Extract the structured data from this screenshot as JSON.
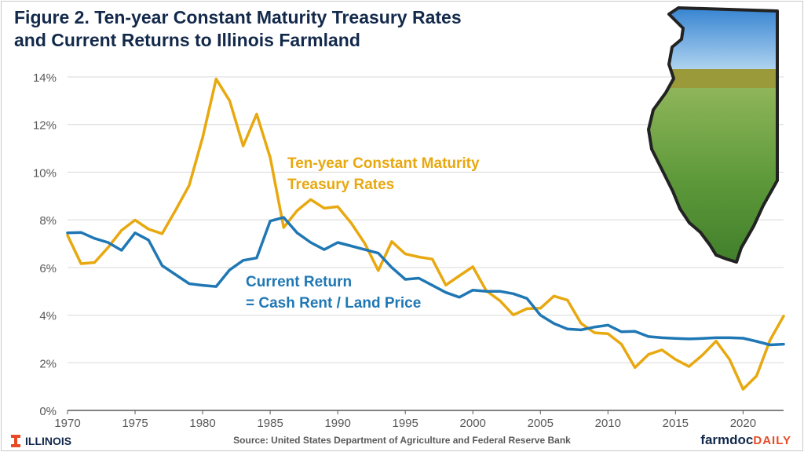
{
  "title_lines": [
    "Figure 2. Ten-year Constant Maturity Treasury Rates",
    "and Current Returns to Illinois Farmland"
  ],
  "footer": {
    "logo_text": "ILLINOIS",
    "source": "Source: United States Department of Agriculture and Federal Reserve Bank",
    "brand_main": "farmdoc",
    "brand_accent": "DAILY"
  },
  "colors": {
    "treasury": "#e8a80f",
    "current_return": "#1f77b4",
    "title": "#13294b",
    "brand_accent": "#e84a27"
  },
  "image": {
    "icon": "illinois-farmland-map-icon"
  },
  "chart_data": {
    "type": "line",
    "title": "Figure 2. Ten-year Constant Maturity Treasury Rates and Current Returns to Illinois Farmland",
    "xlabel": "",
    "ylabel": "",
    "xlim": [
      1970,
      2023
    ],
    "ylim": [
      0,
      14
    ],
    "x_ticks": [
      1970,
      1975,
      1980,
      1985,
      1990,
      1995,
      2000,
      2005,
      2010,
      2015,
      2020
    ],
    "y_ticks": [
      0,
      2,
      4,
      6,
      8,
      10,
      12,
      14
    ],
    "y_tick_suffix": "%",
    "grid": "horizontal",
    "x": [
      1970,
      1971,
      1972,
      1973,
      1974,
      1975,
      1976,
      1977,
      1978,
      1979,
      1980,
      1981,
      1982,
      1983,
      1984,
      1985,
      1986,
      1987,
      1988,
      1989,
      1990,
      1991,
      1992,
      1993,
      1994,
      1995,
      1996,
      1997,
      1998,
      1999,
      2000,
      2001,
      2002,
      2003,
      2004,
      2005,
      2006,
      2007,
      2008,
      2009,
      2010,
      2011,
      2012,
      2013,
      2014,
      2015,
      2016,
      2017,
      2018,
      2019,
      2020,
      2021,
      2022,
      2023
    ],
    "series": [
      {
        "label_lines": [
          "Ten-year Constant Maturity",
          "Treasury Rates"
        ],
        "color": "#e8a80f",
        "values": [
          7.35,
          6.16,
          6.21,
          6.84,
          7.56,
          7.99,
          7.61,
          7.42,
          8.41,
          9.44,
          11.46,
          13.91,
          13.0,
          11.1,
          12.44,
          10.62,
          7.68,
          8.39,
          8.85,
          8.49,
          8.55,
          7.86,
          7.01,
          5.87,
          7.09,
          6.57,
          6.44,
          6.35,
          5.26,
          5.65,
          6.03,
          5.02,
          4.61,
          4.01,
          4.27,
          4.29,
          4.8,
          4.63,
          3.66,
          3.26,
          3.22,
          2.78,
          1.8,
          2.35,
          2.54,
          2.14,
          1.84,
          2.33,
          2.91,
          2.14,
          0.89,
          1.45,
          2.95,
          3.96
        ]
      },
      {
        "label_lines": [
          "Current Return",
          "= Cash Rent / Land Price"
        ],
        "color": "#1f77b4",
        "values": [
          7.45,
          7.47,
          7.22,
          7.05,
          6.72,
          7.45,
          7.15,
          6.08,
          5.7,
          5.32,
          5.25,
          5.2,
          5.9,
          6.3,
          6.4,
          7.95,
          8.1,
          7.45,
          7.05,
          6.75,
          7.05,
          6.9,
          6.75,
          6.6,
          6.0,
          5.5,
          5.55,
          5.25,
          4.95,
          4.75,
          5.05,
          5.0,
          5.0,
          4.9,
          4.7,
          4.0,
          3.65,
          3.42,
          3.38,
          3.5,
          3.58,
          3.3,
          3.32,
          3.1,
          3.05,
          3.02,
          3.0,
          3.02,
          3.05,
          3.05,
          3.03,
          2.9,
          2.75,
          2.78
        ]
      }
    ]
  }
}
